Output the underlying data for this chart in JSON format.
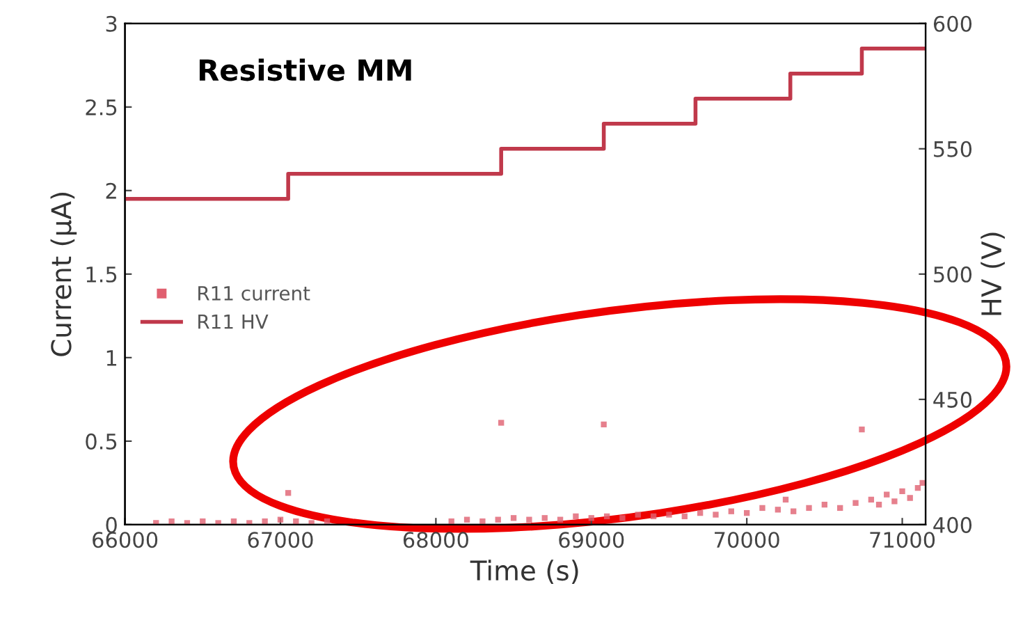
{
  "chart_data": {
    "type": "scatter",
    "title": "Resistive MM",
    "xlabel": "Time (s)",
    "ylabel": "Current (μA)",
    "y2label": "HV (V)",
    "xlim": [
      66000,
      71150
    ],
    "xticks": [
      66000,
      67000,
      68000,
      69000,
      70000,
      71000
    ],
    "ylim": [
      0,
      3
    ],
    "yticks": [
      0,
      0.5,
      1,
      1.5,
      2,
      2.5,
      3
    ],
    "y2lim": [
      400,
      600
    ],
    "y2ticks": [
      400,
      450,
      500,
      550,
      600
    ],
    "grid": false,
    "legend": "left",
    "series": [
      {
        "name": "R11 current",
        "marker": "square",
        "color": "#e06070",
        "x": [
          66200,
          66300,
          66400,
          66500,
          66600,
          66700,
          66800,
          66900,
          67000,
          67050,
          67100,
          67200,
          67300,
          68100,
          68200,
          68300,
          68400,
          68420,
          68500,
          68600,
          68700,
          68800,
          68900,
          69000,
          69080,
          69100,
          69200,
          69300,
          69400,
          69500,
          69600,
          69700,
          69800,
          69900,
          70000,
          70100,
          70200,
          70250,
          70300,
          70400,
          70500,
          70600,
          70700,
          70740,
          70800,
          70850,
          70900,
          70950,
          71000,
          71050,
          71100,
          71130
        ],
        "values": [
          0.01,
          0.02,
          0.01,
          0.02,
          0.01,
          0.02,
          0.01,
          0.02,
          0.03,
          0.19,
          0.02,
          0.01,
          0.02,
          0.02,
          0.03,
          0.02,
          0.03,
          0.61,
          0.04,
          0.03,
          0.04,
          0.03,
          0.05,
          0.04,
          0.6,
          0.05,
          0.04,
          0.06,
          0.05,
          0.06,
          0.05,
          0.07,
          0.06,
          0.08,
          0.07,
          0.1,
          0.09,
          0.15,
          0.08,
          0.1,
          0.12,
          0.1,
          0.13,
          0.57,
          0.15,
          0.12,
          0.18,
          0.14,
          0.2,
          0.16,
          0.22,
          0.25
        ]
      },
      {
        "name": "R11 HV",
        "type": "step",
        "axis": "y2",
        "color": "#c0394b",
        "line_style": "solid",
        "x": [
          66000,
          67050,
          68420,
          69080,
          69670,
          70280,
          70740,
          71150
        ],
        "values": [
          530,
          540,
          550,
          560,
          570,
          580,
          590,
          590
        ]
      }
    ]
  }
}
